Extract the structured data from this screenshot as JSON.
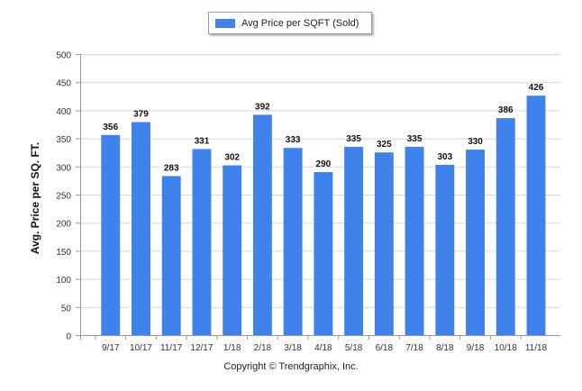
{
  "legend": {
    "label": "Avg Price per SQFT (Sold)"
  },
  "footer": {
    "copyright": "Copyright © Trendgraphix, Inc."
  },
  "colors": {
    "bar": "#3f82ec",
    "grid": "#d8d8d8",
    "axis": "#999999"
  },
  "chart_data": {
    "type": "bar",
    "title": "",
    "xlabel": "",
    "ylabel": "Avg. Price per SQ. FT.",
    "ylim": [
      0,
      500
    ],
    "yticks": [
      0,
      50,
      100,
      150,
      200,
      250,
      300,
      350,
      400,
      450,
      500
    ],
    "grid": true,
    "legend_position": "top-center",
    "categories": [
      "9/17",
      "10/17",
      "11/17",
      "12/17",
      "1/18",
      "2/18",
      "3/18",
      "4/18",
      "5/18",
      "6/18",
      "7/18",
      "8/18",
      "9/18",
      "10/18",
      "11/18"
    ],
    "series": [
      {
        "name": "Avg Price per SQFT (Sold)",
        "values": [
          356,
          379,
          283,
          331,
          302,
          392,
          333,
          290,
          335,
          325,
          335,
          303,
          330,
          386,
          426
        ]
      }
    ]
  }
}
